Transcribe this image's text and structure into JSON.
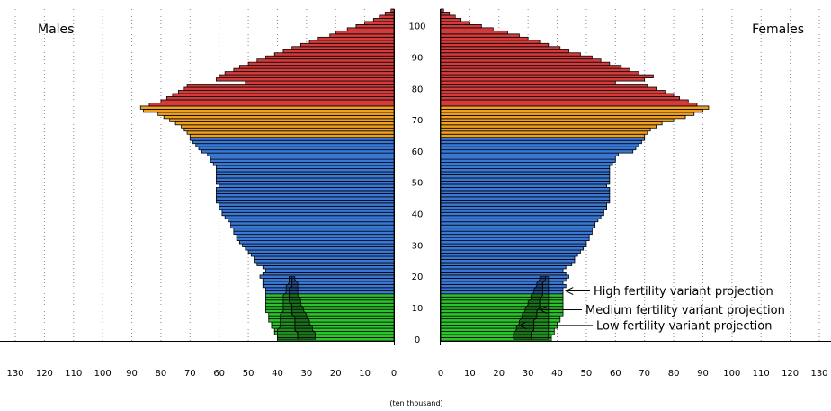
{
  "chart_data": {
    "type": "bar",
    "orientation": "horizontal",
    "layout": "population-pyramid",
    "title": "",
    "xlabel": "(ten thousand)",
    "xlim": [
      0,
      130
    ],
    "ages_range": [
      0,
      105
    ],
    "y_ticks": [
      0,
      10,
      20,
      30,
      40,
      50,
      60,
      70,
      80,
      90,
      100
    ],
    "x_ticks": [
      0,
      10,
      20,
      30,
      40,
      50,
      60,
      70,
      80,
      90,
      100,
      110,
      120,
      130
    ],
    "grid_vertical": true,
    "colors": {
      "age_0_14": "#2bc42b",
      "age_15_64": "#3a78d6",
      "age_65_74": "#f0a020",
      "age_75_plus": "#d43c3c",
      "outline": "#000000"
    },
    "panels": [
      {
        "name": "Males",
        "side": "left"
      },
      {
        "name": "Females",
        "side": "right"
      }
    ],
    "series": [
      {
        "name": "Males",
        "values": [
          40,
          40,
          41,
          41,
          42,
          42,
          43,
          43,
          43,
          44,
          44,
          44,
          44,
          44,
          44,
          44,
          44,
          45,
          45,
          45,
          46,
          45,
          44,
          45,
          47,
          48,
          48,
          49,
          50,
          51,
          52,
          53,
          54,
          54,
          55,
          55,
          56,
          56,
          57,
          58,
          59,
          59,
          60,
          60,
          61,
          61,
          61,
          61,
          61,
          60,
          61,
          61,
          61,
          61,
          61,
          61,
          62,
          63,
          63,
          64,
          66,
          67,
          68,
          69,
          70,
          70,
          71,
          72,
          73,
          75,
          77,
          79,
          81,
          86,
          87,
          84,
          80,
          78,
          76,
          74,
          72,
          71,
          51,
          61,
          60,
          58,
          55,
          53,
          50,
          47,
          44,
          41,
          38,
          35,
          32,
          29,
          26,
          22,
          20,
          16,
          13,
          10,
          7,
          5,
          3,
          1
        ]
      },
      {
        "name": "Females",
        "values": [
          38,
          38,
          39,
          39,
          40,
          40,
          41,
          41,
          42,
          42,
          42,
          42,
          42,
          42,
          42,
          42,
          42,
          43,
          42,
          43,
          44,
          43,
          42,
          43,
          45,
          46,
          46,
          47,
          48,
          49,
          50,
          50,
          51,
          51,
          52,
          52,
          53,
          53,
          54,
          55,
          56,
          56,
          57,
          57,
          58,
          58,
          58,
          58,
          58,
          57,
          58,
          58,
          58,
          58,
          58,
          58,
          59,
          60,
          60,
          61,
          66,
          67,
          68,
          69,
          70,
          70,
          71,
          72,
          74,
          76,
          80,
          84,
          87,
          90,
          92,
          88,
          85,
          82,
          80,
          77,
          74,
          71,
          60,
          70,
          73,
          68,
          65,
          62,
          58,
          55,
          52,
          48,
          44,
          41,
          37,
          34,
          30,
          27,
          23,
          18,
          14,
          10,
          7,
          5,
          3,
          1
        ]
      }
    ],
    "projection_bands": [
      {
        "name": "High fertility variant projection",
        "ages": [
          0,
          20
        ],
        "male_outer": [
          40,
          40,
          40,
          40,
          39,
          39,
          39,
          39,
          39,
          38,
          38,
          38,
          38,
          38,
          38,
          37,
          37,
          37,
          36,
          36,
          36
        ],
        "male_inner": [
          33,
          33,
          33,
          34,
          34,
          34,
          34,
          34,
          35,
          35,
          35,
          35,
          36,
          36,
          36,
          36,
          36,
          35,
          35,
          35,
          35
        ],
        "female_outer": [
          31,
          31,
          31,
          32,
          32,
          32,
          32,
          33,
          33,
          33,
          34,
          34,
          34,
          34,
          35,
          35,
          35,
          35,
          35,
          36,
          36
        ],
        "female_inner": [
          37,
          37,
          37,
          37,
          37,
          37,
          37,
          37,
          37,
          37,
          37,
          37,
          37,
          37,
          37,
          37,
          37,
          37,
          37,
          37,
          37
        ]
      },
      {
        "name": "Medium fertility variant projection",
        "ages": [
          0,
          20
        ],
        "male_outer": [
          33,
          33,
          33,
          34,
          34,
          34,
          34,
          34,
          35,
          35,
          35,
          35,
          36,
          36,
          36,
          36,
          36,
          35,
          35,
          35,
          35
        ],
        "male_inner": [
          27,
          27,
          27,
          28,
          28,
          29,
          29,
          30,
          30,
          31,
          31,
          32,
          32,
          32,
          33,
          33,
          33,
          33,
          33,
          34,
          34
        ],
        "female_outer": [
          25,
          25,
          25,
          26,
          26,
          27,
          27,
          28,
          28,
          29,
          29,
          30,
          30,
          31,
          31,
          32,
          32,
          33,
          33,
          34,
          34
        ],
        "female_inner": [
          31,
          31,
          31,
          32,
          32,
          32,
          32,
          33,
          33,
          33,
          34,
          34,
          34,
          34,
          35,
          35,
          35,
          35,
          35,
          36,
          36
        ]
      },
      {
        "name": "Low fertility variant projection",
        "ages": [
          0,
          20
        ]
      }
    ],
    "annotations": [
      {
        "text": "High fertility variant projection",
        "arrow_age": 16,
        "arrow_value": 43
      },
      {
        "text": "Medium fertility variant projection",
        "arrow_age": 10,
        "arrow_value": 34
      },
      {
        "text": "Low fertility variant projection",
        "arrow_age": 5,
        "arrow_value": 27
      }
    ]
  }
}
